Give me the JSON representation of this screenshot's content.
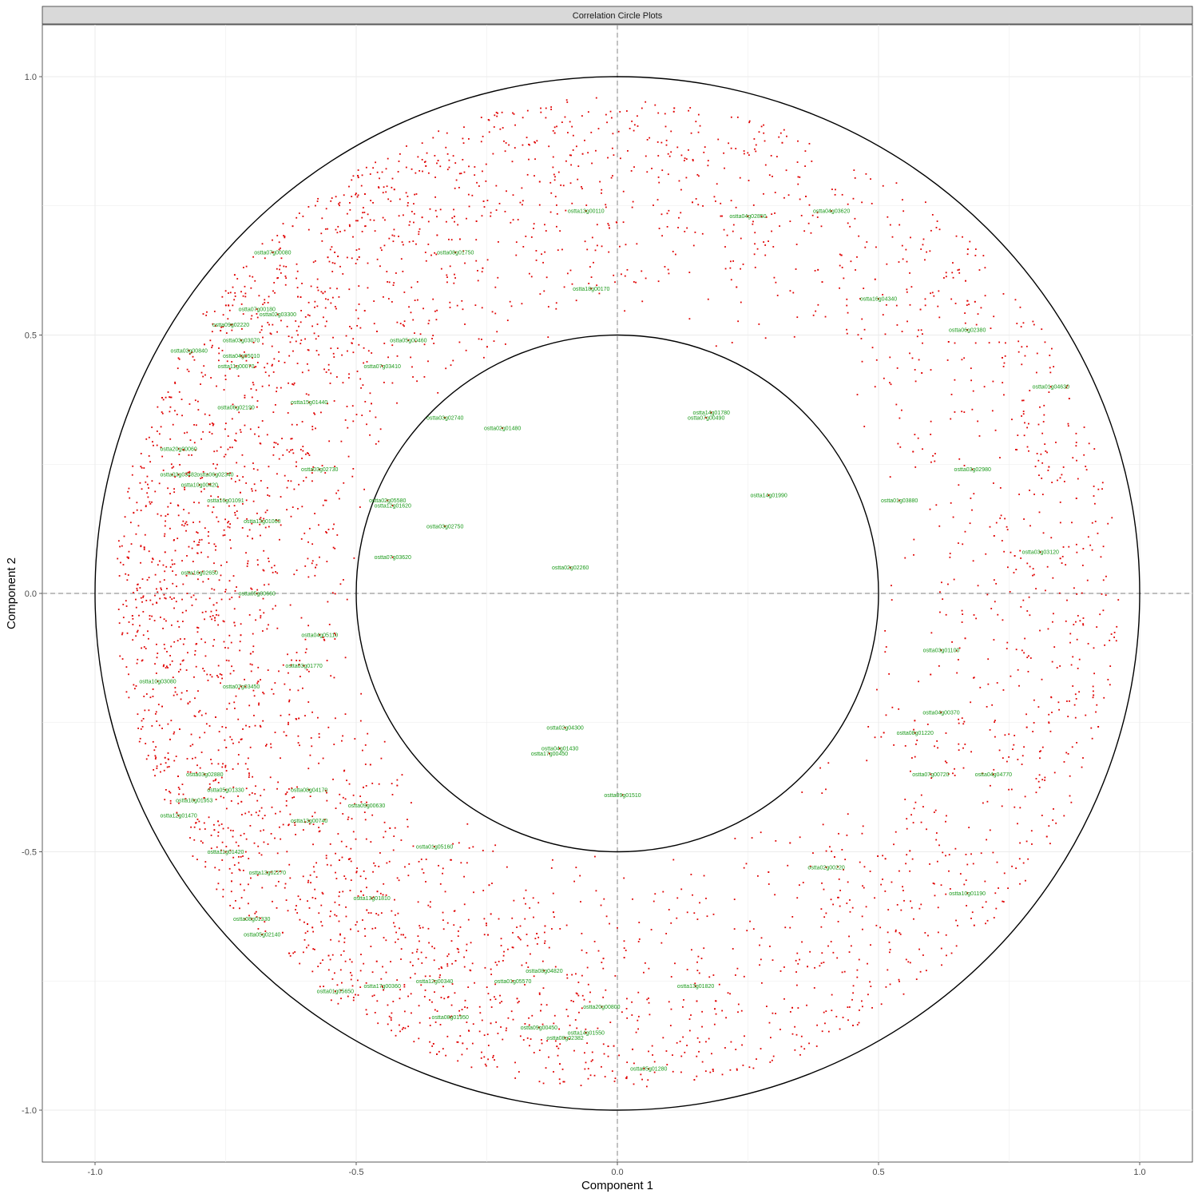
{
  "chart_data": {
    "type": "scatter",
    "panel_title": "Correlation Circle Plots",
    "xlabel": "Component  1",
    "ylabel": "Component  2",
    "xlim": [
      -1.1,
      1.1
    ],
    "ylim": [
      -1.1,
      1.1
    ],
    "x_ticks": [
      {
        "value": -1.0,
        "label": "-1.0"
      },
      {
        "value": -0.5,
        "label": "-0.5"
      },
      {
        "value": 0.0,
        "label": "0.0"
      },
      {
        "value": 0.5,
        "label": "0.5"
      },
      {
        "value": 1.0,
        "label": "1.0"
      }
    ],
    "y_ticks": [
      {
        "value": 1.0,
        "label": "1.0"
      },
      {
        "value": 0.5,
        "label": "0.5"
      },
      {
        "value": 0.0,
        "label": "0.0"
      },
      {
        "value": -0.5,
        "label": "-0.5"
      },
      {
        "value": -1.0,
        "label": "-1.0"
      }
    ],
    "grid": true,
    "reference_circles": [
      1.0,
      0.5
    ],
    "reference_lines": {
      "x": 0,
      "y": 0,
      "style": "dashed"
    },
    "point_color": "#e00000",
    "label_color": "#1a9a1a",
    "point_cloud": {
      "description_note": "approx. 4000 red points filling an annulus between r=0.5 and r=1; denser on left",
      "approx_count": 4000,
      "r_min": 0.5,
      "r_max": 0.96
    },
    "labeled_points": [
      {
        "label": "ostta13g00110",
        "x": -0.06,
        "y": 0.74
      },
      {
        "label": "ostta04g02850",
        "x": 0.25,
        "y": 0.73
      },
      {
        "label": "ostta04g03620",
        "x": 0.41,
        "y": 0.74
      },
      {
        "label": "ostta07g00080",
        "x": -0.66,
        "y": 0.66
      },
      {
        "label": "ostta08g01750",
        "x": -0.31,
        "y": 0.66
      },
      {
        "label": "ostta18g00170",
        "x": -0.05,
        "y": 0.59
      },
      {
        "label": "ostta16g04340",
        "x": 0.5,
        "y": 0.57
      },
      {
        "label": "ostta07g00180",
        "x": -0.69,
        "y": 0.55
      },
      {
        "label": "ostta02g03300",
        "x": -0.65,
        "y": 0.54
      },
      {
        "label": "ostta06g02380",
        "x": 0.67,
        "y": 0.51
      },
      {
        "label": "ostta09g02220",
        "x": -0.74,
        "y": 0.52
      },
      {
        "label": "ostta03g03070",
        "x": -0.72,
        "y": 0.49
      },
      {
        "label": "ostta05g00460",
        "x": -0.4,
        "y": 0.49
      },
      {
        "label": "ostta03g00840",
        "x": -0.82,
        "y": 0.47
      },
      {
        "label": "ostta04g05010",
        "x": -0.72,
        "y": 0.46
      },
      {
        "label": "ostta11g00070",
        "x": -0.73,
        "y": 0.44
      },
      {
        "label": "ostta07g03410",
        "x": -0.45,
        "y": 0.44
      },
      {
        "label": "ostta01g04630",
        "x": 0.83,
        "y": 0.4
      },
      {
        "label": "ostta15g01440",
        "x": -0.59,
        "y": 0.37
      },
      {
        "label": "ostta06g02190",
        "x": -0.73,
        "y": 0.36
      },
      {
        "label": "ostta14g01780",
        "x": 0.18,
        "y": 0.35
      },
      {
        "label": "ostta07g00490",
        "x": 0.17,
        "y": 0.34
      },
      {
        "label": "ostta03g02740",
        "x": -0.33,
        "y": 0.34
      },
      {
        "label": "ostta02g01480",
        "x": -0.22,
        "y": 0.32
      },
      {
        "label": "ostta20g00060",
        "x": -0.84,
        "y": 0.28
      },
      {
        "label": "ostta03g02980",
        "x": 0.68,
        "y": 0.24
      },
      {
        "label": "ostta03g02730",
        "x": -0.57,
        "y": 0.24
      },
      {
        "label": "ostta03g03482",
        "x": -0.84,
        "y": 0.23
      },
      {
        "label": "ostta06g02340",
        "x": -0.77,
        "y": 0.23
      },
      {
        "label": "ostta10g00420",
        "x": -0.8,
        "y": 0.21
      },
      {
        "label": "ostta14g01990",
        "x": 0.29,
        "y": 0.19
      },
      {
        "label": "ostta01g03880",
        "x": 0.54,
        "y": 0.18
      },
      {
        "label": "ostta16g01091",
        "x": -0.75,
        "y": 0.18
      },
      {
        "label": "ostta02g05580",
        "x": -0.44,
        "y": 0.18
      },
      {
        "label": "ostta12g01620",
        "x": -0.43,
        "y": 0.17
      },
      {
        "label": "ostta13g01060",
        "x": -0.68,
        "y": 0.14
      },
      {
        "label": "ostta03g02750",
        "x": -0.33,
        "y": 0.13
      },
      {
        "label": "ostta03g03120",
        "x": 0.81,
        "y": 0.08
      },
      {
        "label": "ostta07g03620",
        "x": -0.43,
        "y": 0.07
      },
      {
        "label": "ostta02g02260",
        "x": -0.09,
        "y": 0.05
      },
      {
        "label": "ostta16g02650",
        "x": -0.8,
        "y": 0.04
      },
      {
        "label": "ostta05g00660",
        "x": -0.69,
        "y": 0.0
      },
      {
        "label": "ostta04g05110",
        "x": -0.57,
        "y": -0.08
      },
      {
        "label": "ostta03g01100",
        "x": 0.62,
        "y": -0.11
      },
      {
        "label": "ostta03g01770",
        "x": -0.6,
        "y": -0.14
      },
      {
        "label": "ostta10g03080",
        "x": -0.88,
        "y": -0.17
      },
      {
        "label": "ostta07g03450",
        "x": -0.72,
        "y": -0.18
      },
      {
        "label": "ostta04g00370",
        "x": 0.62,
        "y": -0.23
      },
      {
        "label": "ostta02g04300",
        "x": -0.1,
        "y": -0.26
      },
      {
        "label": "ostta08g01220",
        "x": 0.57,
        "y": -0.27
      },
      {
        "label": "ostta04g01430",
        "x": -0.11,
        "y": -0.3
      },
      {
        "label": "ostta17g00450",
        "x": -0.13,
        "y": -0.31
      },
      {
        "label": "ostta04g04770",
        "x": 0.72,
        "y": -0.35
      },
      {
        "label": "ostta07g00720",
        "x": 0.6,
        "y": -0.35
      },
      {
        "label": "ostta03g02880",
        "x": -0.79,
        "y": -0.35
      },
      {
        "label": "ostta05g01330",
        "x": -0.75,
        "y": -0.38
      },
      {
        "label": "ostta08g04170",
        "x": -0.59,
        "y": -0.38
      },
      {
        "label": "ostta18g01953",
        "x": -0.81,
        "y": -0.4
      },
      {
        "label": "ostta09g01510",
        "x": 0.01,
        "y": -0.39
      },
      {
        "label": "ostta09g00630",
        "x": -0.48,
        "y": -0.41
      },
      {
        "label": "ostta12g01470",
        "x": -0.84,
        "y": -0.43
      },
      {
        "label": "ostta13g00740",
        "x": -0.59,
        "y": -0.44
      },
      {
        "label": "ostta01g05160",
        "x": -0.35,
        "y": -0.49
      },
      {
        "label": "ostta11g01420",
        "x": -0.75,
        "y": -0.5
      },
      {
        "label": "ostta13g02270",
        "x": -0.67,
        "y": -0.54
      },
      {
        "label": "ostta02g00220",
        "x": 0.4,
        "y": -0.53
      },
      {
        "label": "ostta10g01190",
        "x": 0.67,
        "y": -0.58
      },
      {
        "label": "ostta13g01810",
        "x": -0.47,
        "y": -0.59
      },
      {
        "label": "ostta08g01330",
        "x": -0.7,
        "y": -0.63
      },
      {
        "label": "ostta05g02140",
        "x": -0.68,
        "y": -0.66
      },
      {
        "label": "ostta12g00340",
        "x": -0.35,
        "y": -0.75
      },
      {
        "label": "ostta01g05570",
        "x": -0.2,
        "y": -0.75
      },
      {
        "label": "ostta08g04820",
        "x": -0.14,
        "y": -0.73
      },
      {
        "label": "ostta13g01820",
        "x": 0.15,
        "y": -0.76
      },
      {
        "label": "ostta01g05650",
        "x": -0.54,
        "y": -0.77
      },
      {
        "label": "ostta17g00360",
        "x": -0.45,
        "y": -0.76
      },
      {
        "label": "ostta20g00800",
        "x": -0.03,
        "y": -0.8
      },
      {
        "label": "ostta08g01950",
        "x": -0.32,
        "y": -0.82
      },
      {
        "label": "ostta09g00450",
        "x": -0.15,
        "y": -0.84
      },
      {
        "label": "ostta14g01550",
        "x": -0.06,
        "y": -0.85
      },
      {
        "label": "ostta08g02382",
        "x": -0.1,
        "y": -0.86
      },
      {
        "label": "ostta05g01280",
        "x": 0.06,
        "y": -0.92
      }
    ]
  }
}
